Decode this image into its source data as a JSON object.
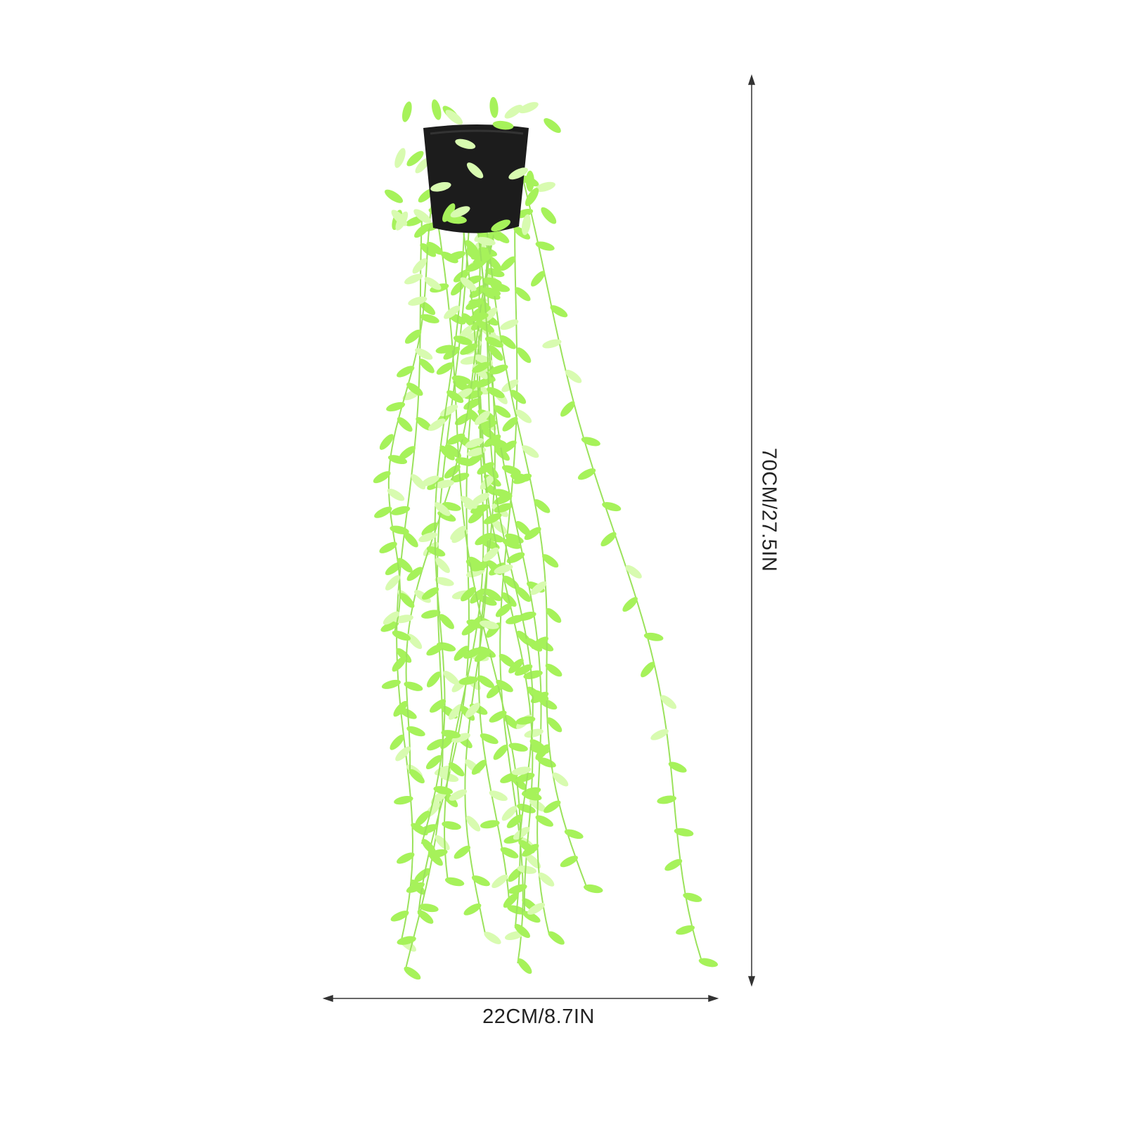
{
  "dimensions": {
    "height_label": "70CM/27.5IN",
    "width_label": "22CM/8.7IN"
  },
  "colors": {
    "background": "#ffffff",
    "leaf": "#a6f25a",
    "leaf_light": "#d8fbb0",
    "stem": "#9be25c",
    "pot": "#1c1c1c",
    "dimension_line": "#333333"
  }
}
